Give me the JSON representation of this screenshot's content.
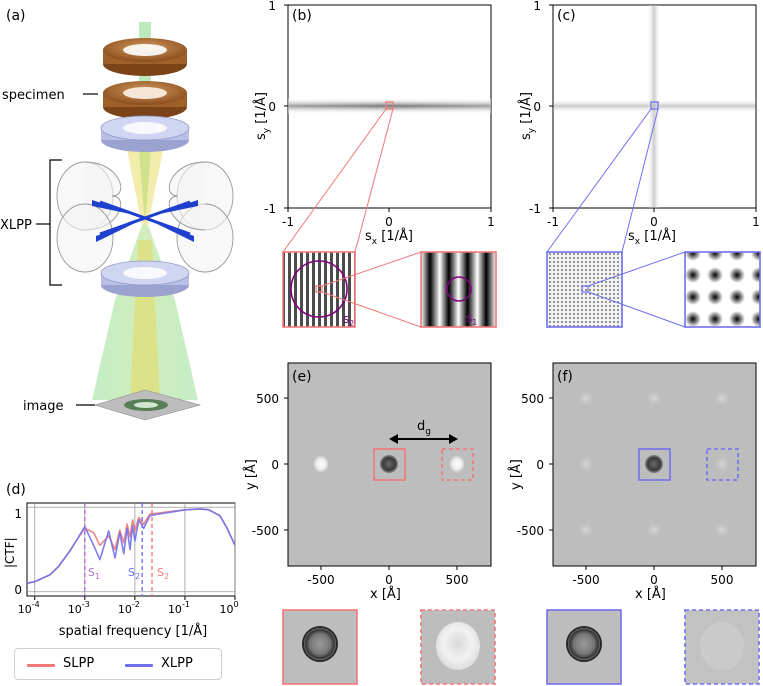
{
  "panels": {
    "a": "(a)",
    "b": "(b)",
    "c": "(c)",
    "d": "(d)",
    "e": "(e)",
    "f": "(f)"
  },
  "schematic": {
    "specimen_label": "specimen",
    "xlpp_label": "XLPP",
    "image_label": "image"
  },
  "ticks_bc": {
    "y_top": "1",
    "y_mid": "0",
    "y_bot": "-1",
    "x_left": "-1",
    "x_mid": "0",
    "x_right": "1"
  },
  "labels_bc": {
    "ylabel": "s_y [1/Å]",
    "ylabel_main": "s",
    "ylabel_sub": "y",
    "ylabel_unit": "[1/Å]",
    "xlabel_main": "s",
    "xlabel_sub": "x",
    "xlabel_unit": "[1/Å]"
  },
  "insets": {
    "s2_main": "s",
    "s2_sub": "2",
    "s1_main": "s",
    "s1_sub": "1"
  },
  "ticks_ef": {
    "y_500": "500",
    "y_0": "0",
    "y_m500": "-500",
    "x_m500": "-500",
    "x_0": "0",
    "x_500": "500"
  },
  "labels_ef": {
    "ylabel": "y [Å]",
    "xlabel": "x [Å]",
    "dg_main": "d",
    "dg_sub": "g"
  },
  "chart_d": {
    "ylabel": "|CTF|",
    "xlabel": "spatial frequency [1/Å]",
    "y_tick_1": "1",
    "y_tick_0": "0",
    "x_ticks": [
      "10",
      "10",
      "10",
      "10",
      "10"
    ],
    "x_exps": [
      "-4",
      "-3",
      "-2",
      "-1",
      "0"
    ],
    "x_tick_last": "10",
    "annot_s1": "S",
    "annot_s1_sub": "1",
    "annot_s2a": "S",
    "annot_s2a_sub": "2",
    "annot_s2b": "S",
    "annot_s2b_sub": "2"
  },
  "legend": {
    "slpp": "SLPP",
    "xlpp": "XLPP"
  },
  "colors": {
    "slpp": "#f07878",
    "xlpp": "#7070f0",
    "purple": "#800080",
    "ring_brown": "#a0602a",
    "lens_blue": "#b8c0e6",
    "beam_green": "#7fd07f",
    "beam_yellow": "#f0e070"
  },
  "chart_data": {
    "type": "line",
    "xscale": "log",
    "xlim": [
      7e-05,
      1
    ],
    "ylim": [
      -0.05,
      1.05
    ],
    "xlabel": "spatial frequency [1/Å]",
    "ylabel": "|CTF|",
    "vlines": {
      "S1": 0.001,
      "S2_XLPP": 0.014,
      "S2_SLPP": 0.022
    },
    "series": [
      {
        "name": "SLPP",
        "x": [
          7e-05,
          0.0001,
          0.0002,
          0.0003,
          0.0005,
          0.0007,
          0.001,
          0.0015,
          0.002,
          0.003,
          0.004,
          0.005,
          0.006,
          0.007,
          0.008,
          0.009,
          0.01,
          0.012,
          0.015,
          0.02,
          0.03,
          0.05,
          0.1,
          0.2,
          0.3,
          0.5,
          0.7,
          1.0
        ],
        "y": [
          0.1,
          0.12,
          0.2,
          0.3,
          0.48,
          0.62,
          0.75,
          0.7,
          0.55,
          0.66,
          0.5,
          0.73,
          0.58,
          0.8,
          0.65,
          0.85,
          0.72,
          0.88,
          0.8,
          0.92,
          0.93,
          0.95,
          0.97,
          0.98,
          0.97,
          0.9,
          0.75,
          0.55
        ]
      },
      {
        "name": "XLPP",
        "x": [
          7e-05,
          0.0001,
          0.0002,
          0.0003,
          0.0005,
          0.0007,
          0.001,
          0.0015,
          0.002,
          0.003,
          0.004,
          0.005,
          0.006,
          0.007,
          0.008,
          0.009,
          0.01,
          0.012,
          0.015,
          0.02,
          0.03,
          0.05,
          0.1,
          0.2,
          0.3,
          0.5,
          0.7,
          1.0
        ],
        "y": [
          0.1,
          0.12,
          0.2,
          0.3,
          0.48,
          0.62,
          0.77,
          0.55,
          0.38,
          0.72,
          0.4,
          0.7,
          0.45,
          0.75,
          0.5,
          0.78,
          0.6,
          0.85,
          0.75,
          0.9,
          0.92,
          0.94,
          0.97,
          0.98,
          0.97,
          0.9,
          0.75,
          0.55
        ]
      }
    ]
  }
}
